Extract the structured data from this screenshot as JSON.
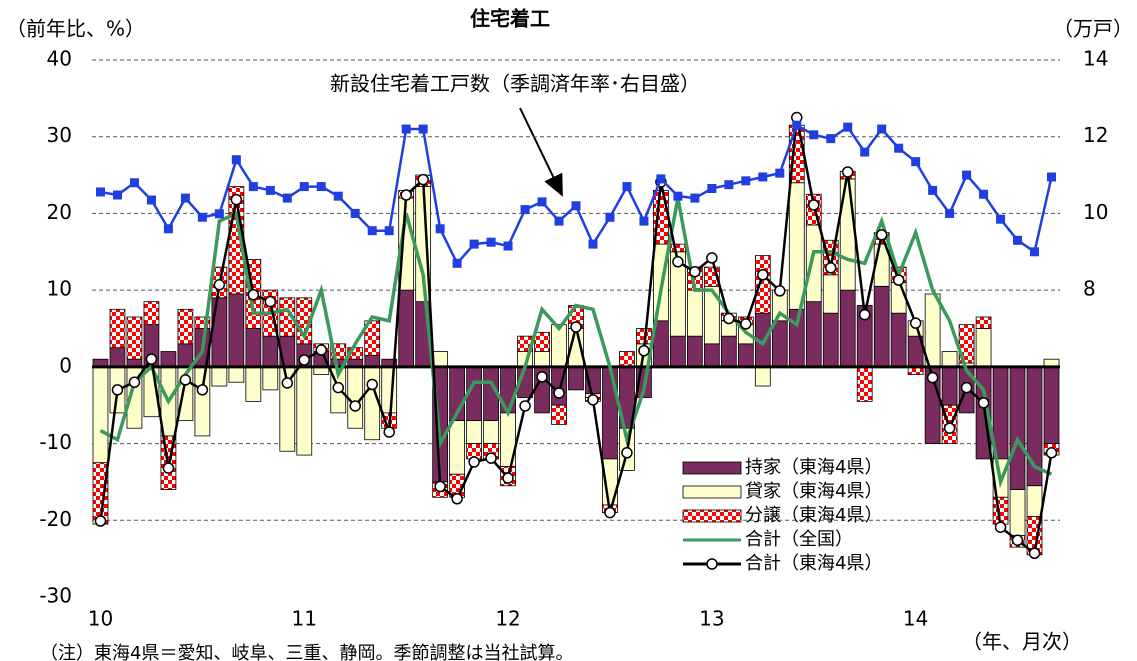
{
  "chart_data": {
    "type": "bar",
    "stacked": true,
    "title": "住宅着工",
    "ylabel": "（前年比、%）",
    "y2label": "（万戸）",
    "xlabel": "（年、月次）",
    "note": "（注）東海4県＝愛知、岐阜、三重、静岡。季節調整は当社試算。",
    "categories": [
      "10",
      null,
      null,
      null,
      null,
      null,
      null,
      null,
      null,
      null,
      null,
      null,
      "11",
      null,
      null,
      null,
      null,
      null,
      null,
      null,
      null,
      null,
      null,
      null,
      "12",
      null,
      null,
      null,
      null,
      null,
      null,
      null,
      null,
      null,
      null,
      null,
      "13",
      null,
      null,
      null,
      null,
      null,
      null,
      null,
      null,
      null,
      null,
      null,
      "14",
      null,
      null,
      null,
      null,
      null,
      null,
      null,
      null
    ],
    "series": [
      {
        "name": "持家（東海4県）",
        "type": "bar",
        "color": "#7b2c5e",
        "values": [
          1,
          2.5,
          1,
          5.5,
          2,
          3,
          5,
          9,
          9.5,
          5,
          4,
          4,
          3,
          2,
          1,
          1,
          1.5,
          1,
          10,
          8.5,
          -15,
          -7,
          -7,
          -7,
          -6,
          -4,
          -6,
          -5,
          -3,
          -3.5,
          -12,
          -8,
          -4,
          6,
          4,
          4,
          3,
          4,
          3,
          7,
          6,
          7.5,
          8.5,
          7,
          10,
          8,
          10.5,
          7,
          4,
          -10,
          -5,
          -6,
          -12,
          -12,
          -16,
          -15.5,
          -10
        ]
      },
      {
        "name": "貸家（東海4県）",
        "type": "bar",
        "color": "#ffffcc",
        "values": [
          -12.5,
          -6,
          -8,
          -6.5,
          -9,
          -7,
          -9,
          -2.5,
          -2,
          -4.5,
          -3,
          -11,
          -11.5,
          -1,
          -6,
          -8,
          -9.5,
          -6,
          12,
          15,
          2,
          -7,
          -3,
          -3,
          -7,
          2,
          2,
          5.5,
          5,
          -0.5,
          -6,
          -5.5,
          3,
          10,
          11,
          6,
          7.5,
          2,
          2.5,
          -2.5,
          4,
          16.5,
          10,
          5,
          14.5,
          0,
          5.5,
          4,
          2,
          9.5,
          2,
          0.5,
          5,
          -5,
          -6,
          -4,
          1
        ]
      },
      {
        "name": "分譲（東海4県）",
        "type": "bar",
        "color": "#ff0000",
        "pattern": "checker",
        "values": [
          -8,
          5,
          5.5,
          3,
          -7,
          4.5,
          1.5,
          4,
          14,
          9,
          6,
          5,
          6,
          1,
          2,
          1.5,
          4.5,
          -2,
          1,
          1.5,
          -2,
          -3,
          -2,
          -2,
          -2.5,
          2,
          2.5,
          -2.5,
          3,
          -0.5,
          -1,
          2,
          2,
          7,
          1,
          3,
          2.5,
          1,
          1,
          7.5,
          0,
          7.5,
          4,
          4.5,
          1,
          -4.5,
          1.5,
          2,
          -1,
          0,
          -5,
          5,
          1.5,
          -3.5,
          -1.5,
          -5,
          -1.5
        ]
      },
      {
        "name": "合計（全国）",
        "type": "line",
        "color": "#3a9a5b",
        "values": [
          -8.3,
          -9.5,
          -2,
          0,
          -4.5,
          -1,
          2,
          19,
          20,
          7,
          7,
          7.5,
          4,
          10,
          -1,
          3,
          6.5,
          6,
          20,
          12,
          -10,
          -6,
          -2,
          -2,
          -6,
          0,
          7.5,
          5,
          8,
          7.5,
          0,
          -9.5,
          -3,
          10,
          22,
          10,
          10,
          7,
          4.5,
          3,
          7,
          5.5,
          15,
          15,
          14,
          13.5,
          19,
          12,
          17.5,
          10,
          6,
          -0.5,
          -3,
          -15,
          -9.5,
          -13,
          -14
        ]
      },
      {
        "name": "合計（東海4県）",
        "type": "line",
        "color": "#000000",
        "marker": "circle",
        "values": [
          -20.1,
          -3,
          -2,
          1,
          -13.2,
          -1.7,
          -3,
          10.7,
          21.8,
          9.4,
          8.5,
          -2.1,
          0.9,
          2.2,
          -2.7,
          -5.1,
          -2.3,
          -8.5,
          22.4,
          24.4,
          -15.6,
          -17.2,
          -12.4,
          -11.9,
          -14.5,
          -5.1,
          -1.3,
          -3.4,
          5.2,
          -4.3,
          -19,
          -11.2,
          2.1,
          24.1,
          13.7,
          12.4,
          14.2,
          6.3,
          5.6,
          12,
          9.9,
          32.5,
          21.1,
          12.9,
          25.4,
          6.8,
          17.2,
          11.3,
          5.7,
          -1.4,
          -8,
          -2.7,
          -4.7,
          -20.9,
          -22.6,
          -24.3,
          -11.2
        ]
      },
      {
        "name": "新設住宅着工戸数（季調済年率･右目盛）",
        "type": "line",
        "axis": "y2",
        "color": "#1f3fe0",
        "marker": "square",
        "values": [
          10.56,
          10.48,
          10.8,
          10.35,
          9.6,
          10.4,
          9.9,
          9.99,
          11.4,
          10.7,
          10.6,
          10.4,
          10.7,
          10.7,
          10.45,
          10,
          9.55,
          9.55,
          12.2,
          12.2,
          9.6,
          8.7,
          9.2,
          9.25,
          9.15,
          10.1,
          10.3,
          9.8,
          10.2,
          9.2,
          9.9,
          10.7,
          9.8,
          10.9,
          10.45,
          10.4,
          10.65,
          10.75,
          10.85,
          10.95,
          11.05,
          12.3,
          12.05,
          11.95,
          12.25,
          11.6,
          12.2,
          11.7,
          11.35,
          10.6,
          10,
          11,
          10.5,
          9.85,
          9.3,
          9,
          10.95
        ]
      }
    ],
    "ylim": [
      -30,
      40
    ],
    "yticks": [
      -30,
      -20,
      -10,
      0,
      10,
      20,
      30,
      40
    ],
    "y2lim": [
      0,
      14
    ],
    "y2ticks": [
      8,
      10,
      12,
      14
    ],
    "grid": true,
    "legend": "lower right"
  }
}
